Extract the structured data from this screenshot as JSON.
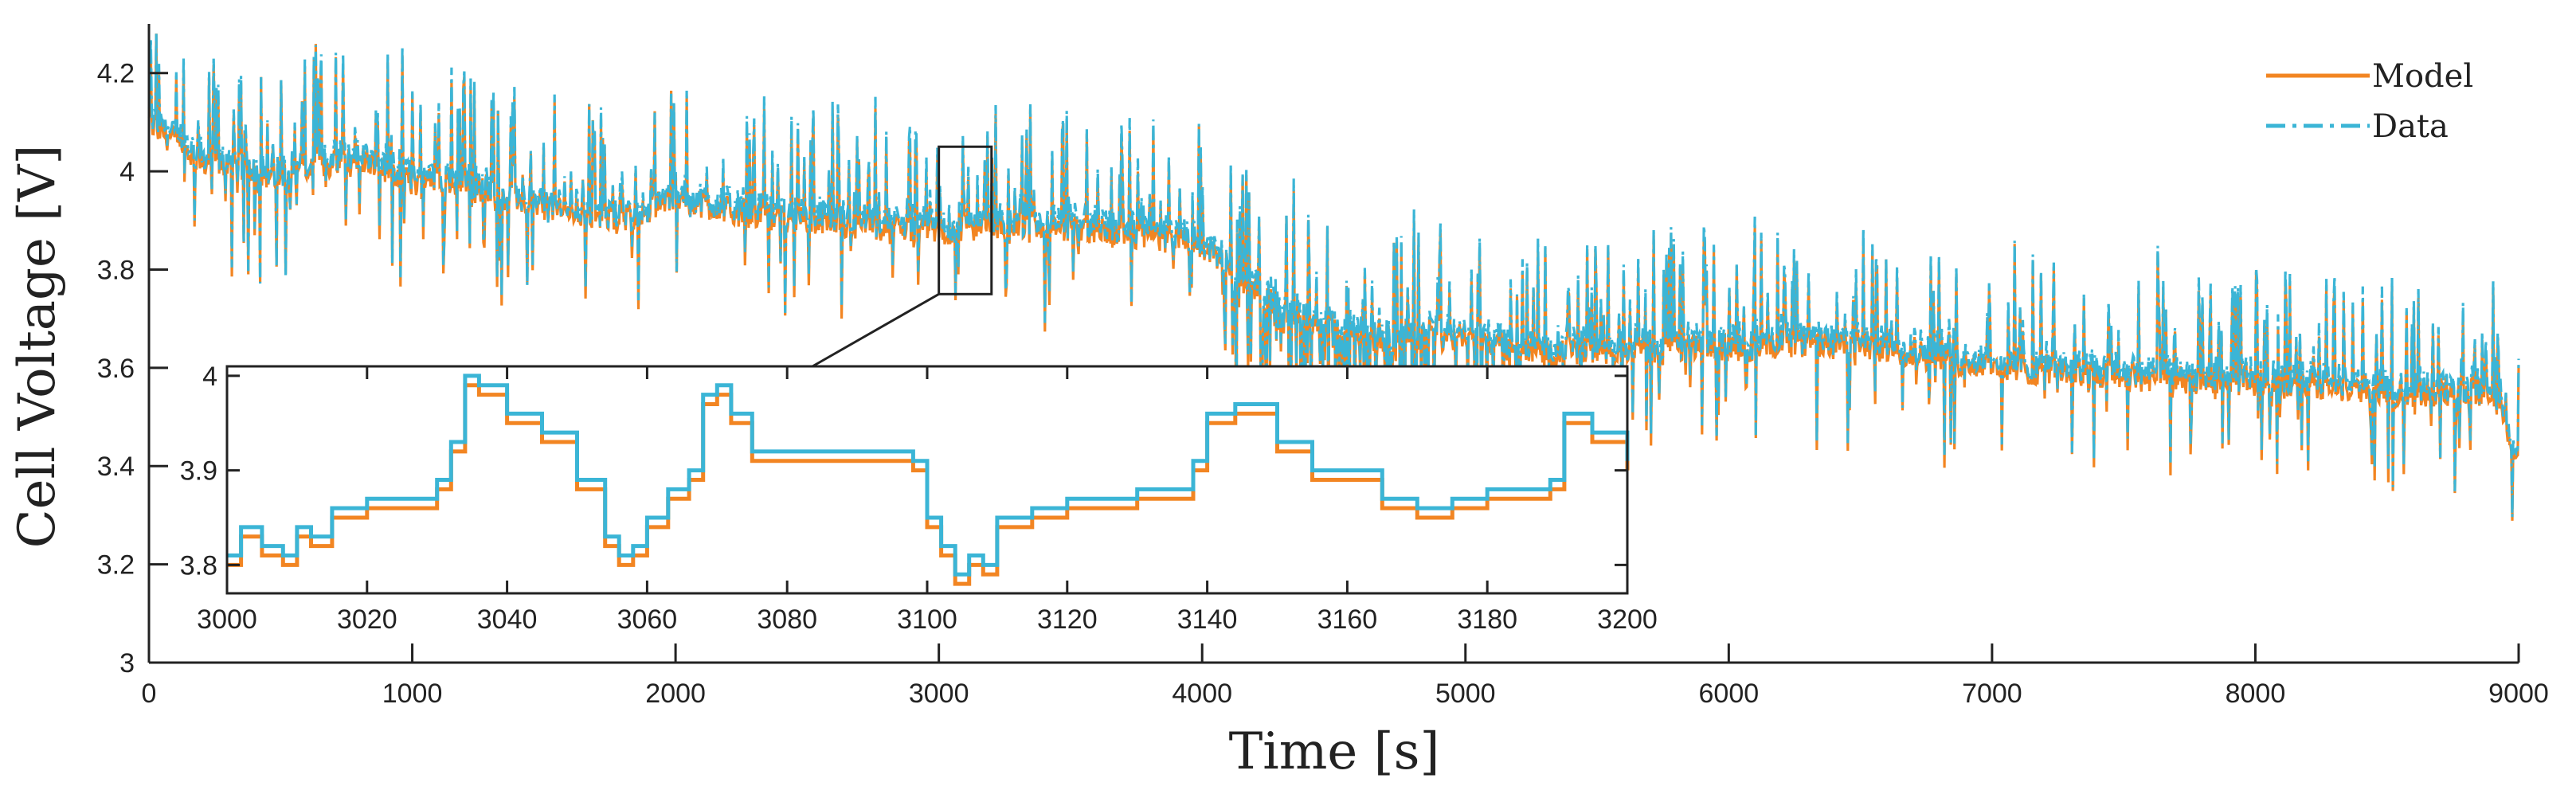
{
  "chart_data": {
    "type": "line",
    "title": "",
    "xlabel": "Time [s]",
    "ylabel": "Cell Voltage [V]",
    "xlim": [
      0,
      9000
    ],
    "ylim": [
      3.0,
      4.3
    ],
    "xticks": [
      0,
      1000,
      2000,
      3000,
      4000,
      5000,
      6000,
      7000,
      8000,
      9000
    ],
    "yticks": [
      3,
      3.2,
      3.4,
      3.6,
      3.8,
      4,
      4.2
    ],
    "xtick_labels": [
      "0",
      "1000",
      "2000",
      "3000",
      "4000",
      "5000",
      "6000",
      "7000",
      "8000",
      "9000"
    ],
    "ytick_labels": [
      "3",
      "3.2",
      "3.4",
      "3.6",
      "3.8",
      "4",
      "4.2"
    ],
    "legend_position": "top-right",
    "colors": {
      "model": "#f28522",
      "data": "#3bb5d6",
      "axis": "#222222"
    },
    "series": [
      {
        "name": "Model",
        "style": "solid",
        "x": [
          0,
          200,
          500,
          800,
          1000,
          1200,
          1500,
          1800,
          2000,
          2200,
          2500,
          2800,
          3000,
          3300,
          3600,
          3900,
          4000,
          4300,
          4600,
          5000,
          5300,
          5600,
          6000,
          6300,
          6600,
          7000,
          7300,
          7600,
          8000,
          8300,
          8600,
          8900,
          9000
        ],
        "y": [
          4.1,
          4.02,
          3.99,
          4.03,
          3.98,
          3.97,
          3.93,
          3.9,
          3.95,
          3.92,
          3.9,
          3.88,
          3.88,
          3.89,
          3.88,
          3.86,
          3.85,
          3.72,
          3.66,
          3.66,
          3.63,
          3.64,
          3.64,
          3.65,
          3.64,
          3.6,
          3.59,
          3.58,
          3.57,
          3.56,
          3.55,
          3.55,
          3.4
        ]
      },
      {
        "name": "Data",
        "style": "dash-dot",
        "x": [
          0,
          200,
          500,
          800,
          1000,
          1200,
          1500,
          1800,
          2000,
          2200,
          2500,
          2800,
          3000,
          3300,
          3600,
          3900,
          4000,
          4300,
          4600,
          5000,
          5300,
          5600,
          6000,
          6300,
          6600,
          7000,
          7300,
          7600,
          8000,
          8300,
          8600,
          8900,
          9000
        ],
        "y": [
          4.11,
          4.03,
          3.99,
          4.04,
          3.99,
          3.98,
          3.93,
          3.91,
          3.95,
          3.93,
          3.91,
          3.89,
          3.89,
          3.9,
          3.89,
          3.87,
          3.86,
          3.73,
          3.67,
          3.67,
          3.64,
          3.65,
          3.65,
          3.66,
          3.65,
          3.61,
          3.6,
          3.59,
          3.58,
          3.57,
          3.56,
          3.56,
          3.41
        ]
      }
    ],
    "zoom_box": {
      "xlim": [
        3000,
        3200
      ],
      "ylim": [
        3.75,
        4.05
      ]
    },
    "inset": {
      "type": "line",
      "xlim": [
        3000,
        3200
      ],
      "ylim": [
        3.77,
        4.01
      ],
      "xticks": [
        3000,
        3020,
        3040,
        3060,
        3080,
        3100,
        3120,
        3140,
        3160,
        3180,
        3200
      ],
      "yticks": [
        3.8,
        3.9,
        4
      ],
      "xtick_labels": [
        "3000",
        "3020",
        "3040",
        "3060",
        "3080",
        "3100",
        "3120",
        "3140",
        "3160",
        "3180",
        "3200"
      ],
      "ytick_labels": [
        "3.8",
        "3.9",
        "4"
      ],
      "series": [
        {
          "name": "Model",
          "x": [
            3000,
            3002,
            3005,
            3008,
            3010,
            3012,
            3015,
            3018,
            3020,
            3025,
            3028,
            3030,
            3032,
            3034,
            3036,
            3040,
            3045,
            3050,
            3054,
            3056,
            3058,
            3060,
            3063,
            3066,
            3068,
            3070,
            3072,
            3075,
            3080,
            3090,
            3098,
            3100,
            3102,
            3104,
            3106,
            3108,
            3110,
            3115,
            3120,
            3125,
            3130,
            3136,
            3138,
            3140,
            3144,
            3150,
            3155,
            3160,
            3165,
            3170,
            3175,
            3180,
            3185,
            3189,
            3191,
            3195,
            3200
          ],
          "y": [
            3.8,
            3.83,
            3.81,
            3.8,
            3.83,
            3.82,
            3.85,
            3.85,
            3.86,
            3.86,
            3.86,
            3.88,
            3.92,
            3.99,
            3.98,
            3.95,
            3.93,
            3.88,
            3.82,
            3.8,
            3.81,
            3.84,
            3.87,
            3.89,
            3.97,
            3.98,
            3.95,
            3.91,
            3.91,
            3.91,
            3.9,
            3.84,
            3.81,
            3.78,
            3.8,
            3.79,
            3.84,
            3.85,
            3.86,
            3.86,
            3.87,
            3.87,
            3.9,
            3.95,
            3.96,
            3.92,
            3.89,
            3.89,
            3.86,
            3.85,
            3.86,
            3.87,
            3.87,
            3.88,
            3.95,
            3.93,
            3.9
          ]
        },
        {
          "name": "Data",
          "x": [
            3000,
            3002,
            3005,
            3008,
            3010,
            3012,
            3015,
            3018,
            3020,
            3025,
            3028,
            3030,
            3032,
            3034,
            3036,
            3040,
            3045,
            3050,
            3054,
            3056,
            3058,
            3060,
            3063,
            3066,
            3068,
            3070,
            3072,
            3075,
            3080,
            3090,
            3098,
            3100,
            3102,
            3104,
            3106,
            3108,
            3110,
            3115,
            3120,
            3125,
            3130,
            3136,
            3138,
            3140,
            3144,
            3150,
            3155,
            3160,
            3165,
            3170,
            3175,
            3180,
            3185,
            3189,
            3191,
            3195,
            3200
          ],
          "y": [
            3.81,
            3.84,
            3.82,
            3.81,
            3.84,
            3.83,
            3.86,
            3.86,
            3.87,
            3.87,
            3.87,
            3.89,
            3.93,
            4.0,
            3.99,
            3.96,
            3.94,
            3.89,
            3.83,
            3.81,
            3.82,
            3.85,
            3.88,
            3.9,
            3.98,
            3.99,
            3.96,
            3.92,
            3.92,
            3.92,
            3.91,
            3.85,
            3.82,
            3.79,
            3.81,
            3.8,
            3.85,
            3.86,
            3.87,
            3.87,
            3.88,
            3.88,
            3.91,
            3.96,
            3.97,
            3.93,
            3.9,
            3.9,
            3.87,
            3.86,
            3.87,
            3.88,
            3.88,
            3.89,
            3.96,
            3.94,
            3.91
          ]
        }
      ]
    }
  }
}
